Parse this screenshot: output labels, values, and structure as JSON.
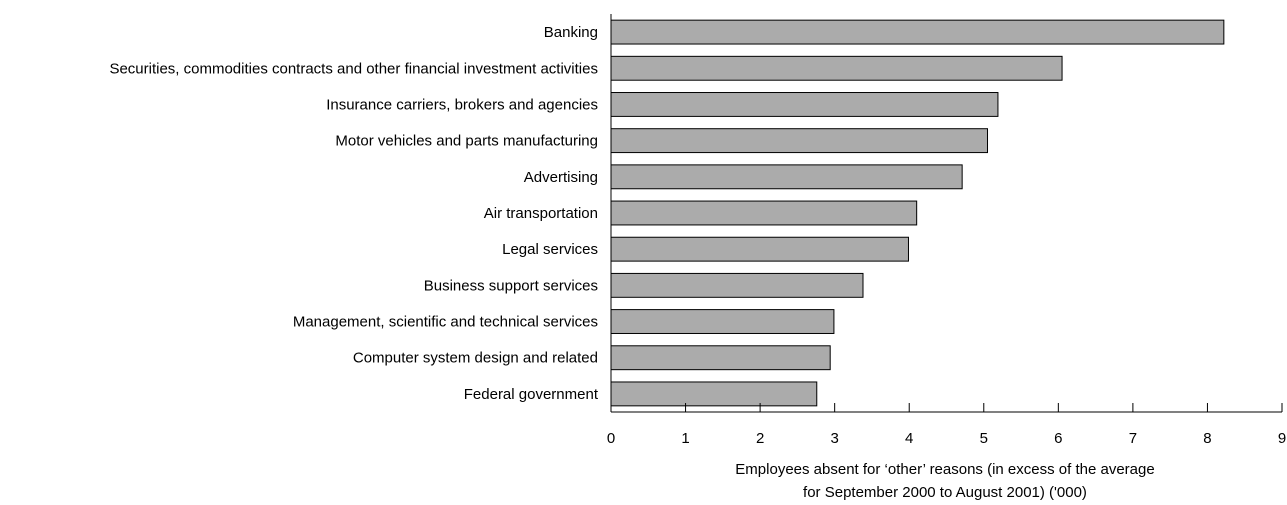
{
  "chart_data": {
    "type": "bar",
    "orientation": "horizontal",
    "categories": [
      "Banking",
      "Securities, commodities contracts and other financial investment activities",
      "Insurance carriers, brokers and agencies",
      "Motor vehicles and parts manufacturing",
      "Advertising",
      "Air transportation",
      "Legal services",
      "Business support services",
      "Management, scientific and technical services",
      "Computer system design and related",
      "Federal government"
    ],
    "values": [
      8.22,
      6.05,
      5.19,
      5.05,
      4.71,
      4.1,
      3.99,
      3.38,
      2.99,
      2.94,
      2.76
    ],
    "xlabel_lines": [
      "Employees absent for ‘other’ reasons (in excess of the average",
      "for September 2000 to August 2001) ('000)"
    ],
    "xlim": [
      0,
      9
    ],
    "xticks": [
      "0",
      "1",
      "2",
      "3",
      "4",
      "5",
      "6",
      "7",
      "8",
      "9"
    ],
    "grid": false,
    "bar_color": "#ababab",
    "bar_edge_color": "#000000"
  }
}
